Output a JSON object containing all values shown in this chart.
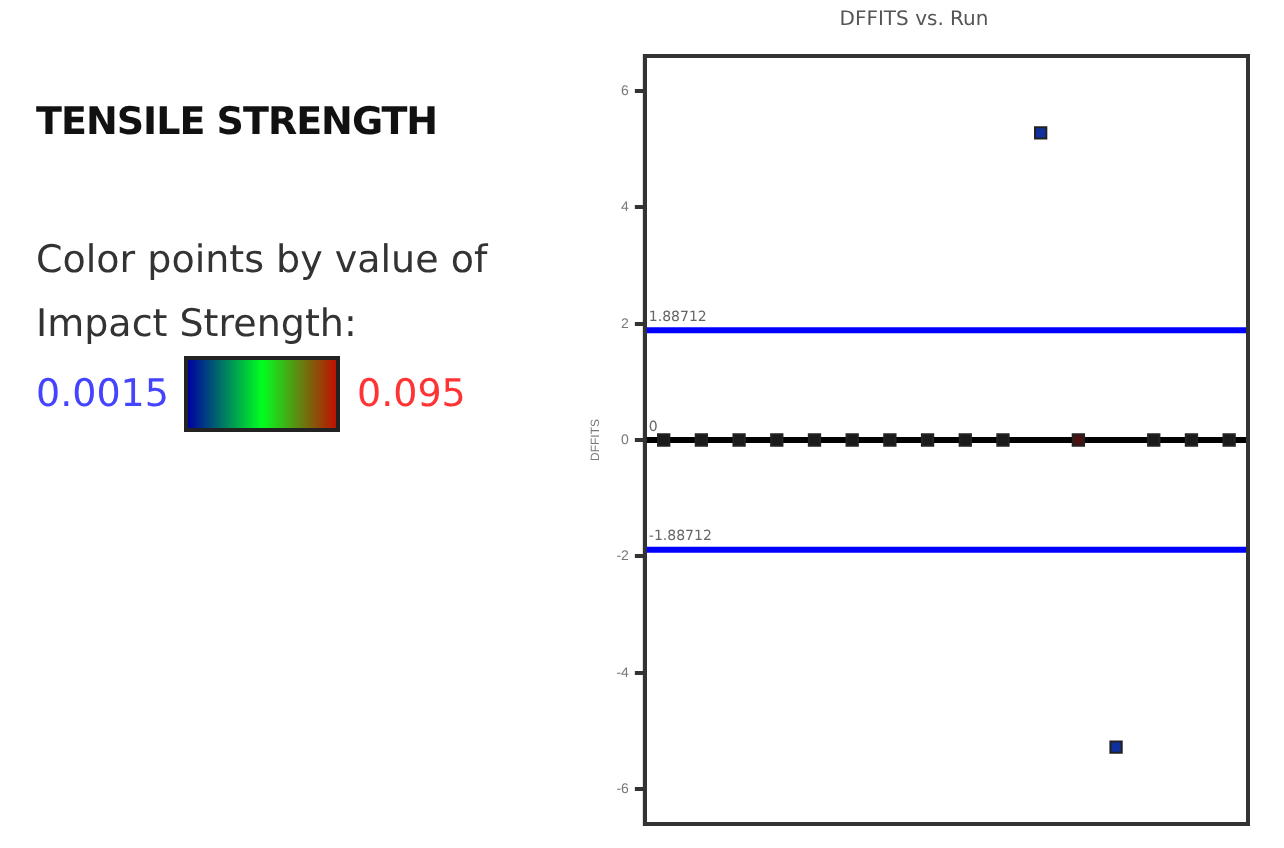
{
  "chart_data": {
    "type": "scatter",
    "title": "DFFITS vs. Run",
    "subtitle": "TENSILE STRENGTH",
    "ylabel": "DFFITS",
    "clabel": "Color points by value of Impact Strength:",
    "annotations": [
      "0.0015",
      "0.095"
    ],
    "categories": [
      null,
      null,
      null,
      null,
      null,
      null,
      null,
      null,
      null,
      null,
      null,
      null,
      null,
      null,
      null,
      null
    ],
    "values": [
      0,
      0,
      0,
      0,
      0,
      0,
      0,
      0,
      0,
      0,
      5.28,
      0,
      -5.28,
      0,
      0,
      0
    ],
    "colors": [
      "#1a1a1a",
      "#1a1a1a",
      "#1a1a1a",
      "#1a1a1a",
      "#1a1a1a",
      "#1a1a1a",
      "#1a1a1a",
      "#1a1a1a",
      "#1a1a1a",
      "#1a1a1a",
      "#1030a0",
      "#4a1010",
      "#1030a0",
      "#1a1a1a",
      "#1a1a1a",
      "#1a1a1a"
    ],
    "ylim": [
      -6.6,
      6.6
    ],
    "yticks": [
      -6,
      -4,
      -2,
      0,
      2,
      4,
      6
    ],
    "ref_lines": [
      {
        "axis": "y",
        "value": 1.88712,
        "label": "1.88712",
        "color": "#0000ff"
      },
      {
        "axis": "y",
        "value": 0,
        "label": "0",
        "color": "#000000"
      },
      {
        "axis": "y",
        "value": -1.88712,
        "label": "-1.88712",
        "color": "#0000ff"
      }
    ],
    "grid": false,
    "legend": false,
    "marker": "square",
    "tick_labels": "y"
  }
}
